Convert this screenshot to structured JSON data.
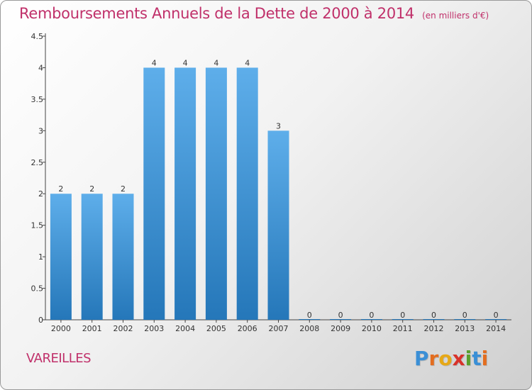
{
  "chart_data": {
    "type": "bar",
    "title": "Remboursements Annuels de la Dette de 2000 à 2014",
    "subtitle": "(en milliers d'€)",
    "categories": [
      "2000",
      "2001",
      "2002",
      "2003",
      "2004",
      "2005",
      "2006",
      "2007",
      "2008",
      "2009",
      "2010",
      "2011",
      "2012",
      "2013",
      "2014"
    ],
    "values": [
      2,
      2,
      2,
      4,
      4,
      4,
      4,
      3,
      0,
      0,
      0,
      0,
      0,
      0,
      0
    ],
    "data_labels": [
      "2",
      "2",
      "2",
      "4",
      "4",
      "4",
      "4",
      "3",
      "0",
      "0",
      "0",
      "0",
      "0",
      "0",
      "0"
    ],
    "y_ticks": [
      "0",
      "0.5",
      "1",
      "1.5",
      "2",
      "2.5",
      "3",
      "3.5",
      "4",
      "4.5"
    ],
    "ylim": [
      0,
      4.5
    ],
    "grid": false,
    "bar_color_top": "#5eaeea",
    "bar_color_bottom": "#2577b9"
  },
  "footer": {
    "commune": "VAREILLES",
    "logo_letters": [
      "P",
      "r",
      "o",
      "x",
      "i",
      "t",
      "i"
    ],
    "logo_colors": [
      "#3a8fd6",
      "#e36d1f",
      "#e6a817",
      "#d8322a",
      "#5aa02c",
      "#3a8fd6",
      "#e36d1f"
    ]
  }
}
